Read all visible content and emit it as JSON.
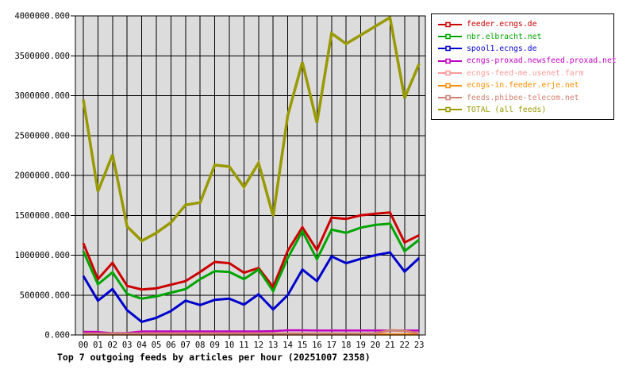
{
  "chart_data": {
    "type": "line",
    "title": "Top 7 outgoing feeds by articles per hour (20251007 2358)",
    "x_labels": [
      "00",
      "01",
      "02",
      "03",
      "04",
      "05",
      "06",
      "07",
      "08",
      "09",
      "10",
      "11",
      "12",
      "13",
      "14",
      "15",
      "16",
      "17",
      "18",
      "19",
      "20",
      "21",
      "22",
      "23"
    ],
    "ylim": [
      0,
      4000000
    ],
    "ytick_step": 500000,
    "ytick_labels": [
      "0.000",
      "500000.000",
      "1000000.000",
      "1500000.000",
      "2000000.000",
      "2500000.000",
      "3000000.000",
      "3500000.000",
      "4000000.000"
    ],
    "grid": true,
    "plot_bg": "#dcdcdc",
    "grid_color": "#000000",
    "axis_color": "#000000",
    "legend_position": "outside-top-right",
    "series": [
      {
        "name": "feeder.ecngs.de",
        "color": "#cc0000",
        "width": 3,
        "values": [
          1150000,
          700000,
          905000,
          615000,
          570000,
          585000,
          630000,
          675000,
          790000,
          915000,
          900000,
          780000,
          840000,
          600000,
          1055000,
          1350000,
          1065000,
          1470000,
          1455000,
          1500000,
          1520000,
          1535000,
          1160000,
          1250000
        ]
      },
      {
        "name": "nbr.elbracht.net",
        "color": "#00a400",
        "width": 3,
        "values": [
          1050000,
          635000,
          785000,
          515000,
          455000,
          485000,
          530000,
          575000,
          700000,
          800000,
          790000,
          700000,
          820000,
          550000,
          965000,
          1300000,
          950000,
          1320000,
          1280000,
          1345000,
          1380000,
          1395000,
          1050000,
          1195000
        ]
      },
      {
        "name": "spool1.ecngs.de",
        "color": "#0000cc",
        "width": 3,
        "values": [
          740000,
          430000,
          575000,
          310000,
          165000,
          215000,
          300000,
          430000,
          375000,
          440000,
          455000,
          380000,
          510000,
          320000,
          500000,
          820000,
          675000,
          985000,
          900000,
          955000,
          1000000,
          1035000,
          795000,
          965000
        ]
      },
      {
        "name": "ecngs-proxad.newsfeed.proxad.net",
        "color": "#bf00bf",
        "width": 2.5,
        "values": [
          40000,
          38000,
          22000,
          25000,
          45000,
          45000,
          45000,
          45000,
          45000,
          45000,
          45000,
          45000,
          45000,
          48000,
          58000,
          58000,
          56000,
          56000,
          56000,
          56000,
          56000,
          56000,
          56000,
          56000
        ]
      },
      {
        "name": "ecngs-feed-me.usenet.farm",
        "color": "#ff9999",
        "width": 2.5,
        "values": [
          10000,
          10000,
          10000,
          10000,
          10000,
          10000,
          10000,
          10000,
          10000,
          10000,
          10000,
          10000,
          10000,
          10000,
          10000,
          10000,
          10000,
          10000,
          10000,
          10000,
          10000,
          10000,
          10000,
          10000
        ]
      },
      {
        "name": "ecngs-in.feeder.erje.net",
        "color": "#ff8c00",
        "width": 2.5,
        "values": [
          5000,
          5000,
          5000,
          5000,
          5000,
          5000,
          5000,
          5000,
          5000,
          5000,
          5000,
          5000,
          5000,
          5000,
          5000,
          5000,
          5000,
          5000,
          5000,
          5000,
          5000,
          5000,
          5000,
          5000
        ]
      },
      {
        "name": "feeds.phibee-telecom.net",
        "color": "#d08070",
        "width": 3,
        "values": [
          18000,
          18000,
          18000,
          18000,
          18000,
          18000,
          18000,
          18000,
          18000,
          18000,
          18000,
          18000,
          18000,
          18000,
          18000,
          18000,
          18000,
          18000,
          18000,
          18000,
          20000,
          58000,
          52000,
          18000
        ]
      },
      {
        "name": "TOTAL (all feeds)",
        "color": "#999900",
        "width": 3.5,
        "values": [
          2950000,
          1800000,
          2260000,
          1360000,
          1180000,
          1280000,
          1410000,
          1630000,
          1660000,
          2130000,
          2110000,
          1855000,
          2155000,
          1490000,
          2750000,
          3420000,
          2660000,
          3780000,
          3650000,
          3760000,
          3870000,
          3980000,
          2970000,
          3400000
        ]
      }
    ]
  }
}
